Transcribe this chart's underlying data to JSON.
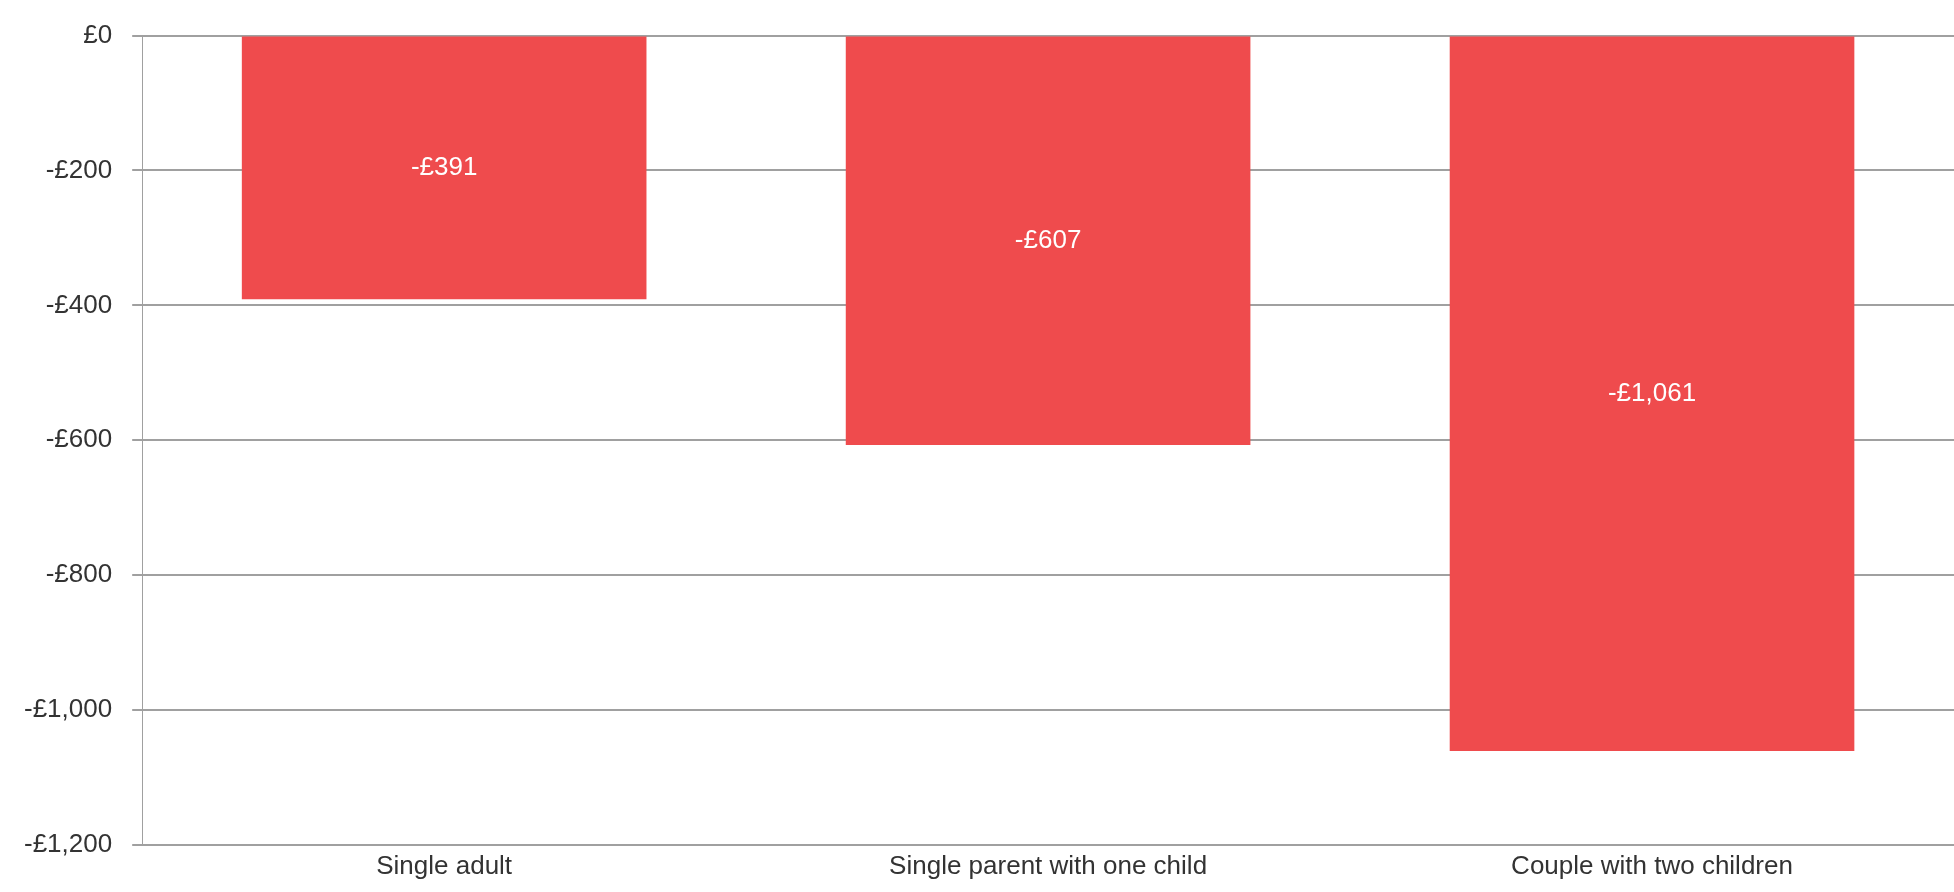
{
  "chart_data": {
    "type": "bar",
    "categories": [
      "Single adult",
      "Single parent with one child",
      "Couple with two children"
    ],
    "values": [
      -391,
      -607,
      -1061
    ],
    "value_labels": [
      "-£391",
      "-£607",
      "-£1,061"
    ],
    "color": "#ef4b4d",
    "ylim": [
      -1200,
      0
    ],
    "yticks": [
      {
        "value": 0,
        "label": "£0"
      },
      {
        "value": -200,
        "label": "-£200"
      },
      {
        "value": -400,
        "label": "-£400"
      },
      {
        "value": -600,
        "label": "-£600"
      },
      {
        "value": -800,
        "label": "-£800"
      },
      {
        "value": -1000,
        "label": "-£1,000"
      },
      {
        "value": -1200,
        "label": "-£1,200"
      }
    ],
    "grid": "y",
    "legend": false
  }
}
